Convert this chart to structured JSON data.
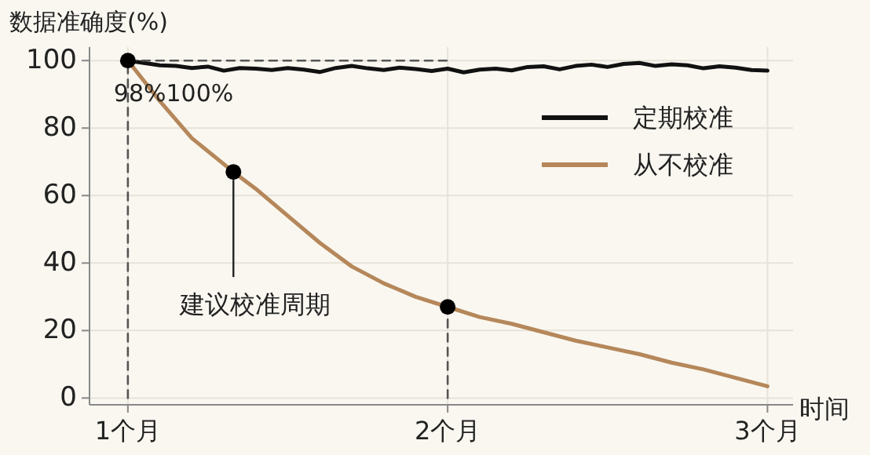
{
  "chart_data": {
    "type": "line",
    "ylabel": "数据准确度(%)",
    "xlabel": "时间",
    "xlim": [
      0.88,
      3.08
    ],
    "ylim": [
      -2,
      104
    ],
    "xticks": [
      {
        "value": 1,
        "label": "1个月"
      },
      {
        "value": 2,
        "label": "2个月"
      },
      {
        "value": 3,
        "label": "3个月"
      }
    ],
    "yticks": [
      0,
      20,
      40,
      60,
      80,
      100
    ],
    "grid": true,
    "legend": "right",
    "series": [
      {
        "name": "定期校准",
        "color": "#111111",
        "x": [
          1,
          1.05,
          1.1,
          1.15,
          1.2,
          1.25,
          1.3,
          1.35,
          1.4,
          1.45,
          1.5,
          1.55,
          1.6,
          1.65,
          1.7,
          1.75,
          1.8,
          1.85,
          1.9,
          1.95,
          2,
          2.05,
          2.1,
          2.15,
          2.2,
          2.25,
          2.3,
          2.35,
          2.4,
          2.45,
          2.5,
          2.55,
          2.6,
          2.65,
          2.7,
          2.75,
          2.8,
          2.85,
          2.9,
          2.95,
          3
        ],
        "values": [
          100,
          99.3,
          98.6,
          98.4,
          97.8,
          98.2,
          97,
          97.8,
          97.6,
          97.2,
          97.8,
          97.3,
          96.6,
          97.8,
          98.4,
          97.7,
          97.2,
          97.9,
          97.5,
          96.9,
          97.6,
          96.5,
          97.3,
          97.6,
          97.1,
          98.1,
          98.3,
          97.4,
          98.4,
          98.8,
          98.1,
          99,
          99.3,
          98.4,
          98.9,
          98.6,
          97.7,
          98.3,
          97.9,
          97.2,
          97
        ]
      },
      {
        "name": "从不校准",
        "color": "#b5875a",
        "x": [
          1,
          1.1,
          1.2,
          1.33,
          1.4,
          1.5,
          1.6,
          1.7,
          1.8,
          1.9,
          2,
          2.1,
          2.2,
          2.3,
          2.4,
          2.5,
          2.6,
          2.7,
          2.8,
          2.9,
          3
        ],
        "values": [
          100,
          88,
          77,
          67,
          62,
          54,
          46,
          39,
          34,
          30,
          27,
          24,
          22,
          19.5,
          17,
          15,
          13,
          10.5,
          8.5,
          6,
          3.5
        ]
      },
      {
        "type": "line",
        "color": "#555555",
        "line_style": "dashed",
        "x": [
          1,
          1
        ],
        "values": [
          0,
          100
        ]
      },
      {
        "type": "line",
        "color": "#555555",
        "line_style": "dashed",
        "x": [
          1,
          2
        ],
        "values": [
          100,
          100
        ]
      },
      {
        "type": "line",
        "color": "#555555",
        "line_style": "dashed",
        "x": [
          2,
          2
        ],
        "values": [
          0,
          27
        ]
      },
      {
        "type": "scatter",
        "color": "#000000",
        "marker": "circle",
        "x": [
          1,
          1.33,
          2
        ],
        "values": [
          100,
          67,
          27
        ]
      }
    ],
    "annotations": [
      {
        "text": "98%100%",
        "x": 1,
        "y": 100
      },
      {
        "text": "建议校准周期",
        "x": 1.33,
        "y": 67
      }
    ]
  }
}
